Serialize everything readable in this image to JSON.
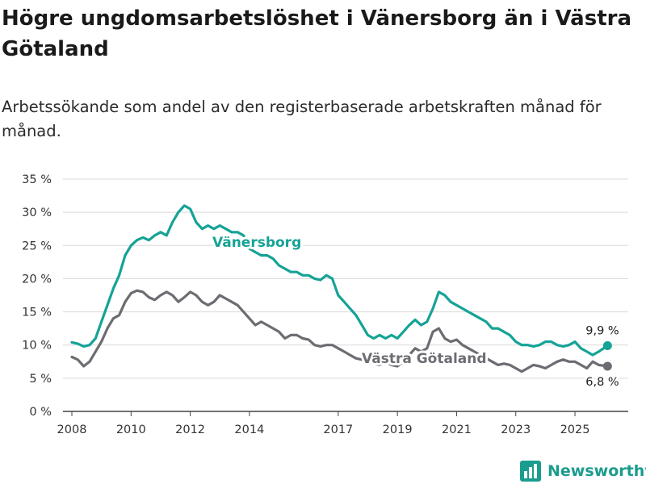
{
  "title": "Högre ungdomsarbetslöshet i Vänersborg än i Västra Götaland",
  "subtitle": "Arbetssökande som andel av den registerbaserade arbetskraften månad för månad.",
  "brand": {
    "name": "Newsworthy",
    "icon": "bar-chart-logo-icon"
  },
  "colors": {
    "vanersborg": "#15a396",
    "vastra": "#6d6c72",
    "grid": "#d9d9d9",
    "axis": "#444444"
  },
  "chart_data": {
    "type": "line",
    "title": "Högre ungdomsarbetslöshet i Vänersborg än i Västra Götaland",
    "xlabel": "",
    "ylabel": "",
    "ylim": [
      0,
      35
    ],
    "xlim": [
      2007.7,
      2026.8
    ],
    "y_ticks": [
      0,
      5,
      10,
      15,
      20,
      25,
      30,
      35
    ],
    "y_tick_labels": [
      "0 %",
      "5 %",
      "10 %",
      "15 %",
      "20 %",
      "25 %",
      "30 %",
      "35 %"
    ],
    "x_ticks": [
      2008,
      2010,
      2012,
      2014,
      2017,
      2019,
      2021,
      2023,
      2025
    ],
    "x_tick_labels": [
      "2008",
      "2010",
      "2012",
      "2014",
      "2017",
      "2019",
      "2021",
      "2023",
      "2025"
    ],
    "series": [
      {
        "name": "Vänersborg",
        "label": "Vänersborg",
        "end_label": "9,9 %",
        "x": [
          2008.0,
          2008.2,
          2008.4,
          2008.6,
          2008.8,
          2009.0,
          2009.2,
          2009.4,
          2009.6,
          2009.8,
          2010.0,
          2010.2,
          2010.4,
          2010.6,
          2010.8,
          2011.0,
          2011.2,
          2011.4,
          2011.6,
          2011.8,
          2012.0,
          2012.2,
          2012.4,
          2012.6,
          2012.8,
          2013.0,
          2013.2,
          2013.4,
          2013.6,
          2013.8,
          2014.0,
          2014.2,
          2014.4,
          2014.6,
          2014.8,
          2015.0,
          2015.2,
          2015.4,
          2015.6,
          2015.8,
          2016.0,
          2016.2,
          2016.4,
          2016.6,
          2016.8,
          2017.0,
          2017.2,
          2017.4,
          2017.6,
          2017.8,
          2018.0,
          2018.2,
          2018.4,
          2018.6,
          2018.8,
          2019.0,
          2019.2,
          2019.4,
          2019.6,
          2019.8,
          2020.0,
          2020.2,
          2020.4,
          2020.6,
          2020.8,
          2021.0,
          2021.2,
          2021.4,
          2021.6,
          2021.8,
          2022.0,
          2022.2,
          2022.4,
          2022.6,
          2022.8,
          2023.0,
          2023.2,
          2023.4,
          2023.6,
          2023.8,
          2024.0,
          2024.2,
          2024.4,
          2024.6,
          2024.8,
          2025.0,
          2025.2,
          2025.4,
          2025.6,
          2025.8,
          2026.1
        ],
        "values": [
          10.4,
          10.2,
          9.8,
          10.0,
          11.0,
          13.5,
          16.0,
          18.5,
          20.5,
          23.5,
          25.0,
          25.8,
          26.2,
          25.8,
          26.5,
          27.0,
          26.5,
          28.5,
          30.0,
          31.0,
          30.5,
          28.5,
          27.5,
          28.0,
          27.5,
          28.0,
          27.5,
          27.0,
          27.0,
          26.5,
          24.5,
          24.0,
          23.5,
          23.5,
          23.0,
          22.0,
          21.5,
          21.0,
          21.0,
          20.5,
          20.5,
          20.0,
          19.8,
          20.5,
          20.0,
          17.5,
          16.5,
          15.5,
          14.5,
          13.0,
          11.5,
          11.0,
          11.5,
          11.0,
          11.5,
          11.0,
          12.0,
          13.0,
          13.8,
          13.0,
          13.5,
          15.5,
          18.0,
          17.5,
          16.5,
          16.0,
          15.5,
          15.0,
          14.5,
          14.0,
          13.5,
          12.5,
          12.5,
          12.0,
          11.5,
          10.5,
          10.0,
          10.0,
          9.8,
          10.0,
          10.5,
          10.5,
          10.0,
          9.8,
          10.0,
          10.5,
          9.5,
          9.0,
          8.5,
          9.0,
          9.9
        ]
      },
      {
        "name": "Västra Götaland",
        "label": "Västra Götaland",
        "end_label": "6,8 %",
        "x": [
          2008.0,
          2008.2,
          2008.4,
          2008.6,
          2008.8,
          2009.0,
          2009.2,
          2009.4,
          2009.6,
          2009.8,
          2010.0,
          2010.2,
          2010.4,
          2010.6,
          2010.8,
          2011.0,
          2011.2,
          2011.4,
          2011.6,
          2011.8,
          2012.0,
          2012.2,
          2012.4,
          2012.6,
          2012.8,
          2013.0,
          2013.2,
          2013.4,
          2013.6,
          2013.8,
          2014.0,
          2014.2,
          2014.4,
          2014.6,
          2014.8,
          2015.0,
          2015.2,
          2015.4,
          2015.6,
          2015.8,
          2016.0,
          2016.2,
          2016.4,
          2016.6,
          2016.8,
          2017.0,
          2017.2,
          2017.4,
          2017.6,
          2017.8,
          2018.0,
          2018.2,
          2018.4,
          2018.6,
          2018.8,
          2019.0,
          2019.2,
          2019.4,
          2019.6,
          2019.8,
          2020.0,
          2020.2,
          2020.4,
          2020.6,
          2020.8,
          2021.0,
          2021.2,
          2021.4,
          2021.6,
          2021.8,
          2022.0,
          2022.2,
          2022.4,
          2022.6,
          2022.8,
          2023.0,
          2023.2,
          2023.4,
          2023.6,
          2023.8,
          2024.0,
          2024.2,
          2024.4,
          2024.6,
          2024.8,
          2025.0,
          2025.2,
          2025.4,
          2025.6,
          2025.8,
          2026.1
        ],
        "values": [
          8.2,
          7.8,
          6.8,
          7.5,
          9.0,
          10.5,
          12.5,
          14.0,
          14.5,
          16.5,
          17.8,
          18.2,
          18.0,
          17.2,
          16.8,
          17.5,
          18.0,
          17.5,
          16.5,
          17.2,
          18.0,
          17.5,
          16.5,
          16.0,
          16.5,
          17.5,
          17.0,
          16.5,
          16.0,
          15.0,
          14.0,
          13.0,
          13.5,
          13.0,
          12.5,
          12.0,
          11.0,
          11.5,
          11.5,
          11.0,
          10.8,
          10.0,
          9.8,
          10.0,
          10.0,
          9.5,
          9.0,
          8.5,
          8.0,
          7.8,
          7.5,
          7.2,
          7.0,
          7.5,
          7.0,
          6.8,
          7.5,
          8.5,
          9.5,
          9.0,
          9.5,
          12.0,
          12.5,
          11.0,
          10.5,
          10.8,
          10.0,
          9.5,
          9.0,
          8.5,
          8.0,
          7.5,
          7.0,
          7.2,
          7.0,
          6.5,
          6.0,
          6.5,
          7.0,
          6.8,
          6.5,
          7.0,
          7.5,
          7.8,
          7.5,
          7.5,
          7.0,
          6.5,
          7.5,
          7.0,
          6.8
        ]
      }
    ]
  }
}
